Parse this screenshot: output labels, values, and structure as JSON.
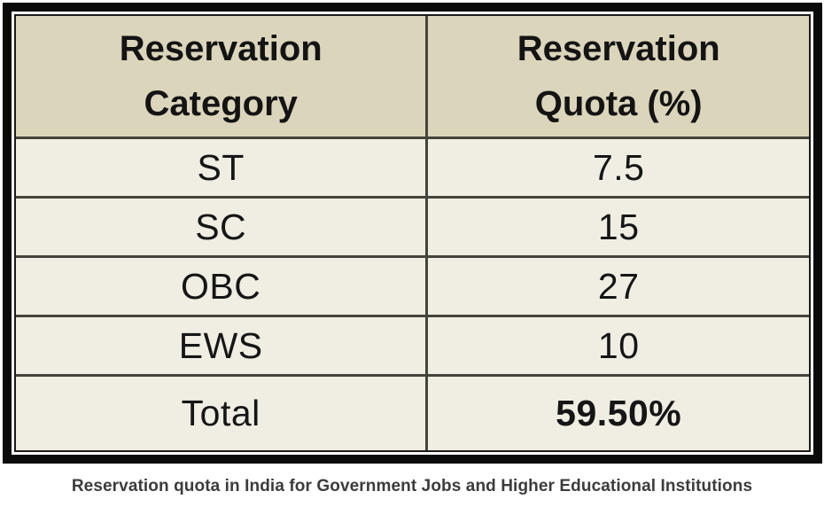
{
  "table": {
    "columns": [
      {
        "line1": "Reservation",
        "line2": "Category"
      },
      {
        "line1": "Reservation",
        "line2": "Quota (%)"
      }
    ],
    "rows": [
      {
        "category": "ST",
        "quota": "7.5"
      },
      {
        "category": "SC",
        "quota": "15"
      },
      {
        "category": "OBC",
        "quota": "27"
      },
      {
        "category": "EWS",
        "quota": "10"
      }
    ],
    "total": {
      "label": "Total",
      "value": "59.50%"
    }
  },
  "caption": "Reservation quota in India for Government Jobs and Higher Educational Institutions",
  "colors": {
    "header_background": "#dbd5bb",
    "row_background": "#f0ede2",
    "grid_line": "#45443c",
    "outer_border": "#0a0a0a",
    "frame_gap": "#fcfcf8",
    "text": "#161616",
    "caption_text": "#3c3c3c"
  },
  "chart_data": {
    "type": "table",
    "title": "Reservation quota in India for Government Jobs and Higher Educational Institutions",
    "columns": [
      "Reservation Category",
      "Reservation Quota (%)"
    ],
    "categories": [
      "ST",
      "SC",
      "OBC",
      "EWS"
    ],
    "values": [
      7.5,
      15,
      27,
      10
    ],
    "total_label": "Total",
    "total_value": "59.50%"
  }
}
